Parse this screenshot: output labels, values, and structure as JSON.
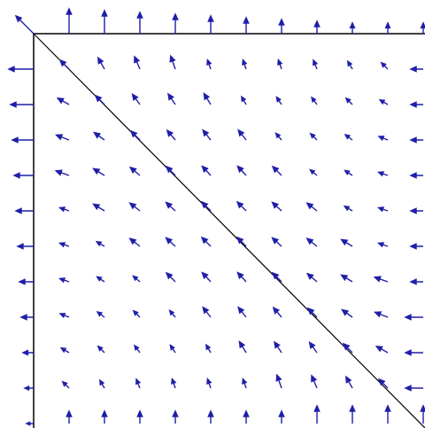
{
  "chart_data": {
    "type": "quiver",
    "color": "#1f1fa8",
    "xlim": [
      0,
      11
    ],
    "ylim": [
      0,
      11
    ],
    "x": [
      0,
      1,
      2,
      3,
      4,
      5,
      6,
      7,
      8,
      9,
      10,
      11
    ],
    "y": [
      0,
      1,
      2,
      3,
      4,
      5,
      6,
      7,
      8,
      9,
      10,
      11
    ],
    "u": [
      [
        -0.5,
        0,
        0,
        0,
        0,
        0,
        0,
        0,
        0,
        0,
        0,
        0
      ],
      [
        -0.7,
        -0.25,
        -0.18,
        -0.15,
        -0.13,
        -0.09,
        -0.09,
        -0.09,
        -0.1,
        -0.13,
        -0.18,
        -0.35
      ],
      [
        -0.65,
        -0.32,
        -0.25,
        -0.21,
        -0.2,
        -0.19,
        -0.13,
        -0.14,
        -0.15,
        -0.18,
        -0.22,
        -0.35
      ],
      [
        -0.6,
        -0.36,
        -0.29,
        -0.25,
        -0.23,
        -0.22,
        -0.22,
        -0.16,
        -0.18,
        -0.2,
        -0.25,
        -0.35
      ],
      [
        -0.55,
        -0.37,
        -0.31,
        -0.27,
        -0.25,
        -0.24,
        -0.24,
        -0.25,
        -0.19,
        -0.21,
        -0.26,
        -0.35
      ],
      [
        -0.5,
        -0.26,
        -0.31,
        -0.28,
        -0.26,
        -0.25,
        -0.25,
        -0.26,
        -0.28,
        -0.22,
        -0.26,
        -0.35
      ],
      [
        -0.45,
        -0.26,
        -0.22,
        -0.28,
        -0.26,
        -0.25,
        -0.25,
        -0.26,
        -0.28,
        -0.31,
        -0.26,
        -0.35
      ],
      [
        -0.4,
        -0.26,
        -0.21,
        -0.19,
        -0.25,
        -0.24,
        -0.24,
        -0.25,
        -0.27,
        -0.31,
        -0.37,
        -0.35
      ],
      [
        -0.35,
        -0.25,
        -0.2,
        -0.18,
        -0.16,
        -0.22,
        -0.22,
        -0.23,
        -0.25,
        -0.29,
        -0.36,
        -0.5
      ],
      [
        -0.3,
        -0.22,
        -0.18,
        -0.15,
        -0.14,
        -0.13,
        -0.19,
        -0.2,
        -0.21,
        -0.25,
        -0.32,
        -0.5
      ],
      [
        -0.25,
        -0.18,
        -0.13,
        -0.1,
        -0.09,
        -0.09,
        -0.09,
        -0.13,
        -0.15,
        -0.18,
        -0.25,
        -0.5
      ],
      [
        -0.2,
        0,
        0,
        0,
        0,
        0,
        0,
        0,
        0,
        0,
        0,
        0
      ]
    ],
    "v": [
      [
        -0.5,
        -0.7,
        -0.65,
        -0.6,
        -0.55,
        -0.5,
        -0.45,
        -0.4,
        -0.35,
        -0.3,
        -0.3,
        -0.3
      ],
      [
        0,
        -0.25,
        -0.32,
        -0.35,
        -0.37,
        -0.26,
        -0.26,
        -0.26,
        -0.25,
        -0.22,
        -0.18,
        0
      ],
      [
        0,
        -0.18,
        -0.25,
        -0.29,
        -0.3,
        -0.31,
        -0.22,
        -0.21,
        -0.2,
        -0.18,
        -0.13,
        0
      ],
      [
        0,
        -0.14,
        -0.21,
        -0.25,
        -0.27,
        -0.28,
        -0.28,
        -0.19,
        -0.18,
        -0.15,
        -0.1,
        0
      ],
      [
        0,
        -0.13,
        -0.19,
        -0.23,
        -0.25,
        -0.26,
        -0.26,
        -0.25,
        -0.16,
        -0.14,
        -0.09,
        0
      ],
      [
        0,
        -0.09,
        -0.19,
        -0.22,
        -0.24,
        -0.25,
        -0.25,
        -0.24,
        -0.22,
        -0.13,
        -0.09,
        0
      ],
      [
        0,
        -0.09,
        -0.13,
        -0.22,
        -0.24,
        -0.25,
        -0.25,
        -0.24,
        -0.22,
        -0.19,
        -0.09,
        0
      ],
      [
        0,
        -0.09,
        -0.14,
        -0.16,
        -0.25,
        -0.26,
        -0.26,
        -0.25,
        -0.23,
        -0.19,
        -0.13,
        0
      ],
      [
        0,
        -0.1,
        -0.15,
        -0.18,
        -0.19,
        -0.28,
        -0.28,
        -0.27,
        -0.25,
        -0.21,
        -0.14,
        0
      ],
      [
        0,
        -0.13,
        -0.18,
        -0.2,
        -0.21,
        -0.22,
        -0.31,
        -0.3,
        -0.29,
        -0.25,
        -0.18,
        0
      ],
      [
        0,
        -0.18,
        -0.22,
        -0.25,
        -0.26,
        -0.26,
        -0.26,
        -0.37,
        -0.35,
        -0.32,
        -0.25,
        0
      ],
      [
        0,
        -0.35,
        -0.35,
        -0.35,
        -0.35,
        -0.35,
        -0.35,
        -0.35,
        -0.5,
        -0.5,
        -0.5,
        -0.5
      ]
    ]
  }
}
